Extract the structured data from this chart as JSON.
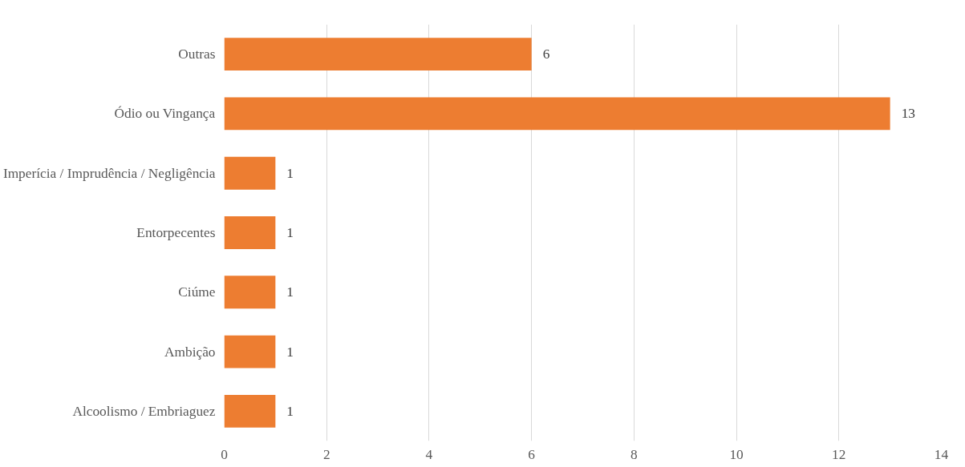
{
  "chart_data": {
    "type": "bar",
    "orientation": "horizontal",
    "categories": [
      "Outras",
      "Ódio ou Vingança",
      "Imperícia / Imprudência / Negligência",
      "Entorpecentes",
      "Ciúme",
      "Ambição",
      "Alcoolismo / Embriaguez"
    ],
    "values": [
      6,
      13,
      1,
      1,
      1,
      1,
      1
    ],
    "color": "#ed7d31",
    "xlim": [
      0,
      14
    ],
    "xticks": [
      0,
      2,
      4,
      6,
      8,
      10,
      12,
      14
    ],
    "grid": "x",
    "data_labels": true
  }
}
